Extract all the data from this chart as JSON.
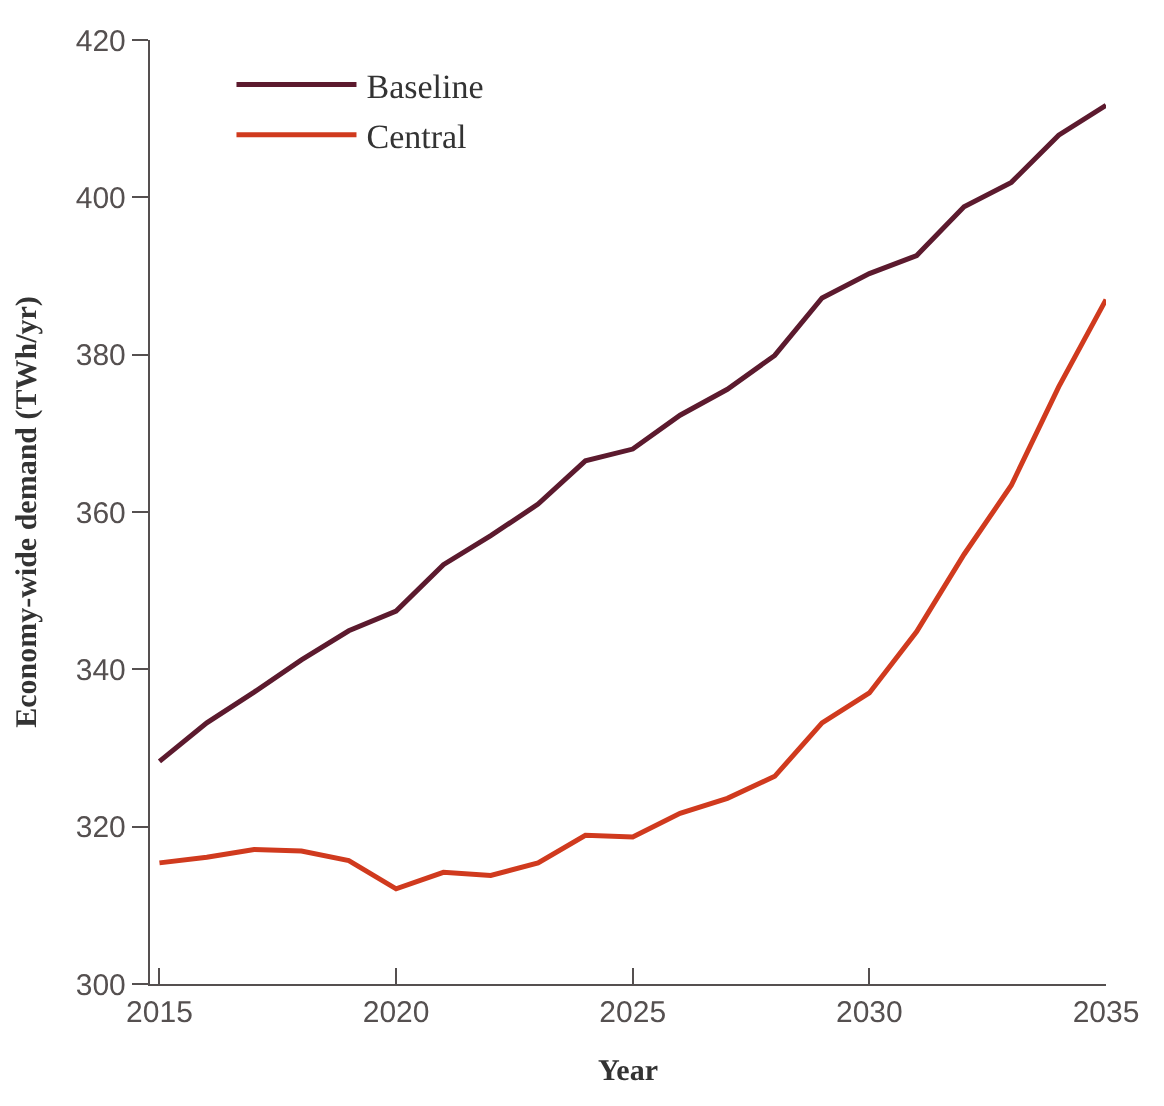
{
  "chart_data": {
    "type": "line",
    "xlabel": "Year",
    "ylabel": "Economy-wide demand (TWh/yr)",
    "x": [
      2015,
      2016,
      2017,
      2018,
      2019,
      2020,
      2021,
      2022,
      2023,
      2024,
      2025,
      2026,
      2027,
      2028,
      2029,
      2030,
      2031,
      2032,
      2033,
      2034,
      2035
    ],
    "series": [
      {
        "name": "Baseline",
        "color": "#5c1a2e",
        "values": [
          328.3,
          333.2,
          337.1,
          341.2,
          344.9,
          347.4,
          353.3,
          357.0,
          361.0,
          366.5,
          368.0,
          372.3,
          375.6,
          379.9,
          387.2,
          390.3,
          392.6,
          398.8,
          401.9,
          407.9,
          411.7
        ]
      },
      {
        "name": "Central",
        "color": "#d03a1e",
        "values": [
          315.4,
          316.1,
          317.1,
          316.9,
          315.7,
          312.1,
          314.2,
          313.8,
          315.4,
          318.9,
          318.7,
          321.7,
          323.6,
          326.4,
          333.2,
          337.0,
          344.8,
          354.6,
          363.4,
          375.9,
          387.0
        ]
      }
    ],
    "xlim": [
      2014.8,
      2035
    ],
    "xticks": [
      2015,
      2020,
      2025,
      2030,
      2035
    ],
    "ylim": [
      300,
      420
    ],
    "yticks": [
      300,
      320,
      340,
      360,
      380,
      400,
      420
    ],
    "legend": "top left",
    "marker": "none",
    "line_style": "solid"
  }
}
